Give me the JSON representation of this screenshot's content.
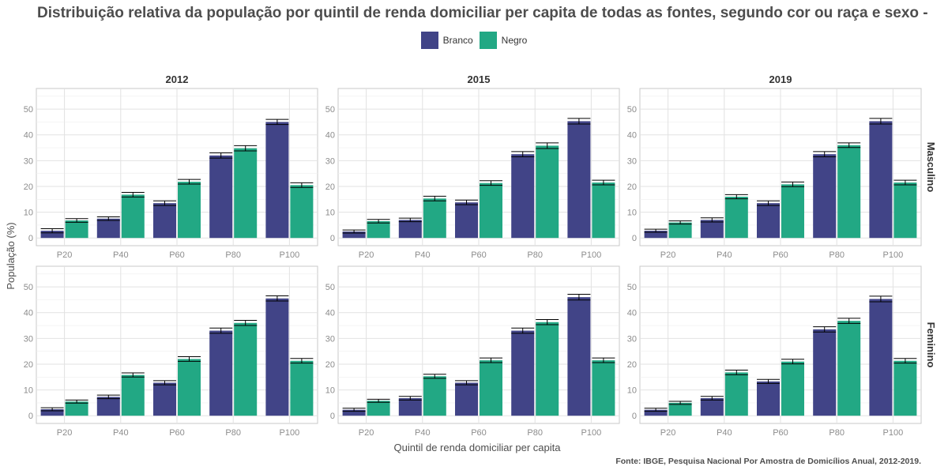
{
  "title": "Distribuição relativa da população por quintil de renda domiciliar per capita de todas as fontes, segundo cor ou raça e sexo -",
  "caption": "Fonte: IBGE, Pesquisa Nacional Por Amostra de Domicílios Anual, 2012-2019.",
  "legend": [
    {
      "name": "Branco",
      "color": "#414487"
    },
    {
      "name": "Negro",
      "color": "#22a884"
    }
  ],
  "chart_data": {
    "type": "bar",
    "xlabel": "Quintil de renda domiciliar per capita",
    "ylabel": "População (%)",
    "ylim": [
      0,
      58
    ],
    "yticks": [
      0,
      10,
      20,
      30,
      40,
      50
    ],
    "categories": [
      "P20",
      "P40",
      "P60",
      "P80",
      "P100"
    ],
    "columns": [
      "2012",
      "2015",
      "2019"
    ],
    "rows": [
      "Masculino",
      "Feminino"
    ],
    "grid": true,
    "legend_position": "top",
    "error_bars": true,
    "panels": [
      {
        "year": "2012",
        "sex": "Masculino",
        "series": [
          {
            "name": "Branco",
            "values": [
              2.8,
              7.5,
              13.5,
              32.0,
              45.0
            ],
            "err": [
              0.8,
              0.7,
              0.9,
              1.0,
              1.0
            ]
          },
          {
            "name": "Negro",
            "values": [
              6.8,
              16.8,
              21.8,
              34.8,
              20.5
            ],
            "err": [
              0.7,
              0.9,
              0.9,
              1.0,
              0.9
            ]
          }
        ]
      },
      {
        "year": "2015",
        "sex": "Masculino",
        "series": [
          {
            "name": "Branco",
            "values": [
              2.5,
              7.0,
              13.8,
              32.5,
              45.3
            ],
            "err": [
              0.6,
              0.7,
              0.9,
              1.0,
              1.1
            ]
          },
          {
            "name": "Negro",
            "values": [
              6.5,
              15.3,
              21.3,
              35.8,
              21.5
            ],
            "err": [
              0.7,
              0.9,
              0.9,
              1.1,
              0.9
            ]
          }
        ]
      },
      {
        "year": "2019",
        "sex": "Masculino",
        "series": [
          {
            "name": "Branco",
            "values": [
              2.8,
              7.0,
              13.5,
              32.5,
              45.3
            ],
            "err": [
              0.6,
              0.8,
              0.9,
              1.0,
              1.1
            ]
          },
          {
            "name": "Negro",
            "values": [
              6.0,
              16.0,
              20.8,
              36.0,
              21.5
            ],
            "err": [
              0.6,
              0.8,
              0.9,
              0.9,
              0.9
            ]
          }
        ]
      },
      {
        "year": "2012",
        "sex": "Feminino",
        "series": [
          {
            "name": "Branco",
            "values": [
              2.5,
              7.3,
              12.8,
              33.0,
              45.5
            ],
            "err": [
              0.6,
              0.7,
              0.8,
              1.0,
              1.0
            ]
          },
          {
            "name": "Negro",
            "values": [
              5.5,
              15.8,
              22.0,
              36.0,
              21.3
            ],
            "err": [
              0.6,
              0.8,
              0.9,
              1.0,
              0.9
            ]
          }
        ]
      },
      {
        "year": "2015",
        "sex": "Feminino",
        "series": [
          {
            "name": "Branco",
            "values": [
              2.3,
              6.8,
              12.8,
              33.0,
              46.0
            ],
            "err": [
              0.6,
              0.7,
              0.8,
              1.0,
              1.1
            ]
          },
          {
            "name": "Negro",
            "values": [
              5.8,
              15.3,
              21.5,
              36.3,
              21.5
            ],
            "err": [
              0.6,
              0.8,
              0.9,
              1.0,
              0.9
            ]
          }
        ]
      },
      {
        "year": "2019",
        "sex": "Feminino",
        "series": [
          {
            "name": "Branco",
            "values": [
              2.3,
              6.8,
              13.3,
              33.5,
              45.3
            ],
            "err": [
              0.6,
              0.7,
              0.8,
              1.0,
              1.1
            ]
          },
          {
            "name": "Negro",
            "values": [
              5.0,
              16.8,
              21.0,
              36.8,
              21.3
            ],
            "err": [
              0.6,
              0.9,
              0.9,
              1.0,
              0.9
            ]
          }
        ]
      }
    ]
  }
}
